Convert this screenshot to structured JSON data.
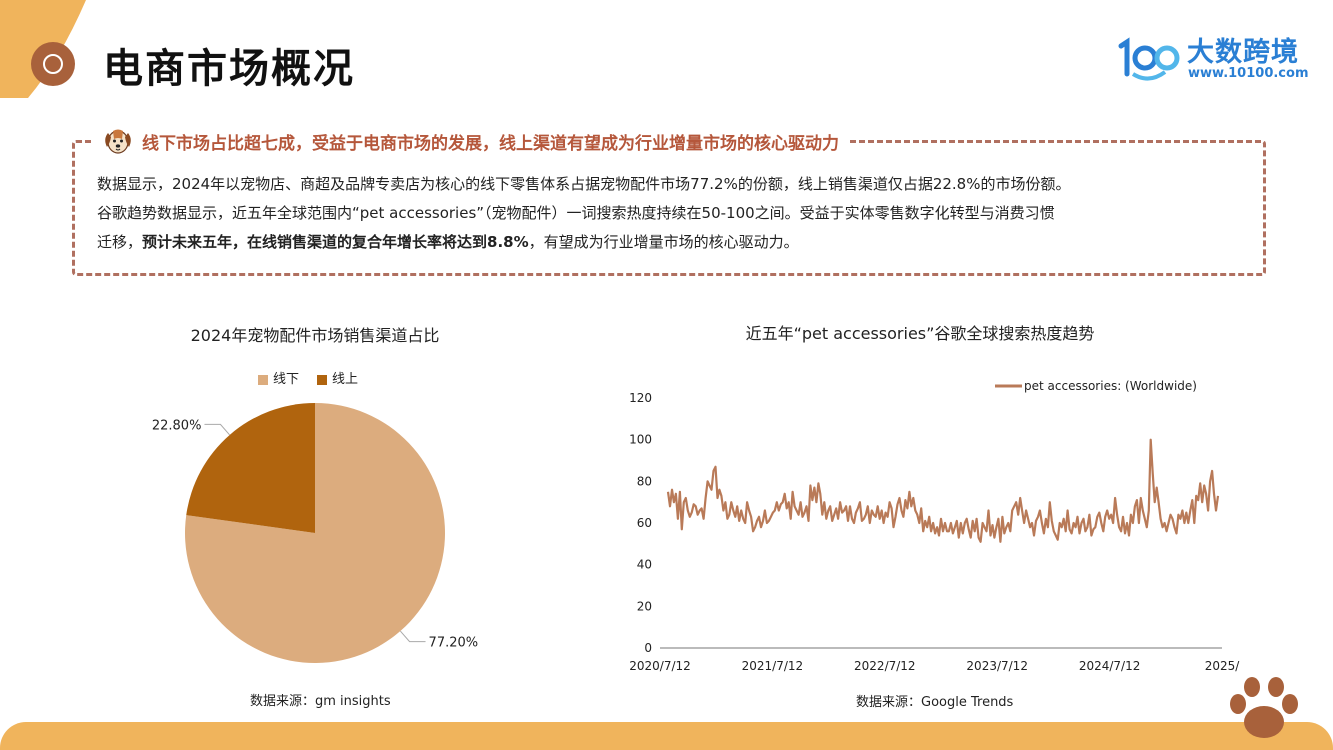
{
  "header": {
    "title": "电商市场概况",
    "logo_name": "大数跨境",
    "logo_url": "www.10100.com"
  },
  "summary": {
    "headline": "线下市场占比超七成，受益于电商市场的发展，线上渠道有望成为行业增量市场的核心驱动力",
    "line1": "数据显示，2024年以宠物店、商超及品牌专卖店为核心的线下零售体系占据宠物配件市场77.2%的份额，线上销售渠道仅占据22.8%的市场份额。",
    "line2": "谷歌趋势数据显示，近五年全球范围内“pet accessories”（宠物配件）一词搜索热度持续在50-100之间。受益于实体零售数字化转型与消费习惯",
    "line3_a": "迁移，",
    "line3_bold": "预计未来五年，在线销售渠道的复合年增长率将达到8.8%",
    "line3_b": "，有望成为行业增量市场的核心驱动力。"
  },
  "colors": {
    "offline": "#dcac7e",
    "online": "#b0640e",
    "trend_line": "#b97a58",
    "accent": "#f0b45c",
    "headline": "#b5573b"
  },
  "chart_data": [
    {
      "type": "pie",
      "title": "2024年宠物配件市场销售渠道占比",
      "labels": [
        "线下",
        "线上"
      ],
      "values": [
        77.2,
        22.8
      ],
      "data_labels": [
        "77.20%",
        "22.80%"
      ],
      "legend": "top",
      "source": "数据来源：gm insights"
    },
    {
      "type": "line",
      "title": "近五年“pet accessories”谷歌全球搜索热度趋势",
      "series": [
        {
          "name": "pet accessories: (Worldwide)",
          "values": [
            75,
            68,
            76,
            70,
            74,
            62,
            75,
            57,
            70,
            72,
            66,
            63,
            65,
            69,
            68,
            64,
            66,
            67,
            62,
            72,
            80,
            78,
            76,
            85,
            87,
            72,
            76,
            73,
            66,
            70,
            62,
            64,
            70,
            66,
            63,
            68,
            61,
            66,
            62,
            60,
            70,
            66,
            63,
            56,
            58,
            61,
            63,
            58,
            61,
            66,
            60,
            61,
            63,
            65,
            66,
            70,
            66,
            69,
            70,
            74,
            67,
            70,
            62,
            75,
            68,
            66,
            64,
            70,
            63,
            65,
            68,
            61,
            78,
            71,
            77,
            70,
            79,
            74,
            64,
            70,
            62,
            66,
            68,
            61,
            64,
            67,
            62,
            70,
            65,
            66,
            68,
            61,
            68,
            62,
            60,
            65,
            67,
            70,
            61,
            62,
            64,
            68,
            60,
            66,
            64,
            63,
            68,
            62,
            66,
            60,
            65,
            63,
            70,
            67,
            58,
            63,
            69,
            72,
            66,
            63,
            71,
            67,
            75,
            68,
            72,
            66,
            64,
            60,
            67,
            56,
            61,
            58,
            63,
            56,
            60,
            55,
            58,
            54,
            62,
            56,
            60,
            56,
            56,
            60,
            55,
            58,
            61,
            53,
            60,
            55,
            60,
            62,
            57,
            53,
            61,
            56,
            62,
            53,
            51,
            60,
            58,
            56,
            66,
            54,
            59,
            53,
            58,
            62,
            51,
            63,
            55,
            58,
            60,
            56,
            66,
            68,
            70,
            64,
            72,
            66,
            60,
            66,
            62,
            58,
            60,
            54,
            61,
            63,
            66,
            60,
            55,
            62,
            58,
            70,
            61,
            56,
            54,
            52,
            60,
            58,
            62,
            56,
            66,
            57,
            55,
            60,
            58,
            63,
            55,
            60,
            62,
            56,
            58,
            64,
            54,
            57,
            58,
            63,
            65,
            60,
            56,
            63,
            66,
            62,
            64,
            60,
            72,
            64,
            58,
            56,
            63,
            55,
            60,
            54,
            64,
            60,
            68,
            71,
            60,
            72,
            66,
            62,
            58,
            66,
            100,
            84,
            70,
            77,
            70,
            62,
            58,
            60,
            56,
            60,
            64,
            62,
            58,
            55,
            64,
            62,
            66,
            60,
            65,
            60,
            66,
            71,
            60,
            73,
            71,
            79,
            70,
            78,
            74,
            66,
            80,
            85,
            74,
            66,
            73
          ]
        }
      ],
      "x_ticks": [
        "2020/7/12",
        "2021/7/12",
        "2022/7/12",
        "2023/7/12",
        "2024/7/12",
        "2025/"
      ],
      "y_ticks": [
        "0",
        "20",
        "40",
        "60",
        "80",
        "100",
        "120"
      ],
      "ylim": [
        0,
        120
      ],
      "legend": "top-right",
      "grid": false,
      "source": "数据来源：Google Trends"
    }
  ]
}
